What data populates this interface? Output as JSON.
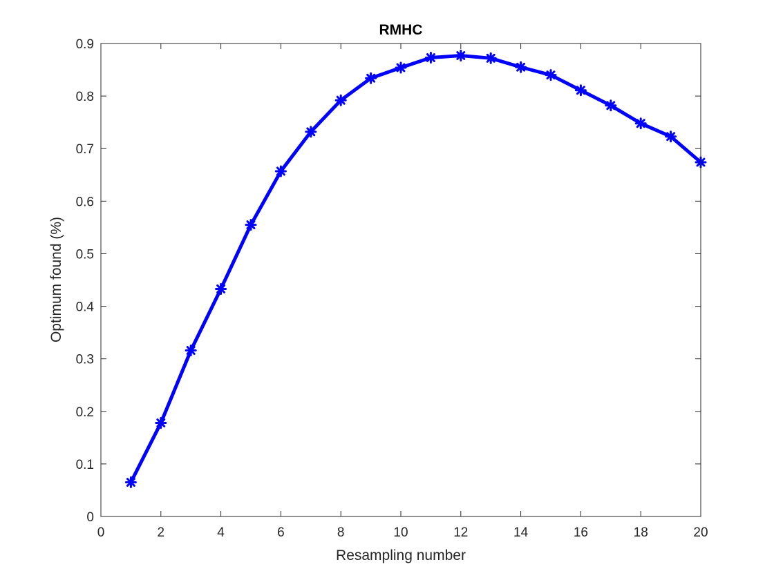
{
  "chart_data": {
    "type": "line",
    "title": "RMHC",
    "xlabel": "Resampling number",
    "ylabel": "Optimum found (%)",
    "xlim": [
      0,
      20
    ],
    "ylim": [
      0,
      0.9
    ],
    "xticks": [
      0,
      2,
      4,
      6,
      8,
      10,
      12,
      14,
      16,
      18,
      20
    ],
    "xtick_labels": [
      "0",
      "2",
      "4",
      "6",
      "8",
      "10",
      "12",
      "14",
      "16",
      "18",
      "20"
    ],
    "yticks": [
      0,
      0.1,
      0.2,
      0.3,
      0.4,
      0.5,
      0.6,
      0.7,
      0.8,
      0.9
    ],
    "ytick_labels": [
      "0",
      "0.1",
      "0.2",
      "0.3",
      "0.4",
      "0.5",
      "0.6",
      "0.7",
      "0.8",
      "0.9"
    ],
    "grid": false,
    "legend": "none",
    "series": [
      {
        "color": "#0000ff",
        "marker": "asterisk",
        "x": [
          1,
          2,
          3,
          4,
          5,
          6,
          7,
          8,
          9,
          10,
          11,
          12,
          13,
          14,
          15,
          16,
          17,
          18,
          19,
          20
        ],
        "y": [
          0.065,
          0.178,
          0.316,
          0.433,
          0.555,
          0.657,
          0.732,
          0.792,
          0.834,
          0.854,
          0.873,
          0.877,
          0.872,
          0.855,
          0.84,
          0.811,
          0.782,
          0.748,
          0.723,
          0.674
        ]
      }
    ]
  }
}
